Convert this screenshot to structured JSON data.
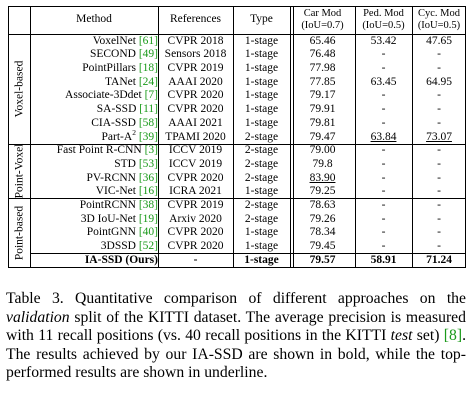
{
  "table": {
    "headers": {
      "method": "Method",
      "references": "References",
      "type": "Type",
      "car": "Car Mod",
      "car_sub": "(IoU=0.7)",
      "ped": "Ped. Mod",
      "ped_sub": "(IoU=0.5)",
      "cyc": "Cyc. Mod",
      "cyc_sub": "(IoU=0.5)"
    },
    "groups": [
      {
        "label": "Voxel-based",
        "rows": [
          {
            "method": "VoxelNet",
            "cite": "[61]",
            "ref": "CVPR 2018",
            "type": "1-stage",
            "car": "65.46",
            "ped": "53.42",
            "cyc": "47.65"
          },
          {
            "method": "SECOND",
            "cite": "[49]",
            "ref": "Sensors 2018",
            "type": "1-stage",
            "car": "76.48",
            "ped": "-",
            "cyc": "-"
          },
          {
            "method": "PointPillars",
            "cite": "[18]",
            "ref": "CVPR 2019",
            "type": "1-stage",
            "car": "77.98",
            "ped": "-",
            "cyc": "-"
          },
          {
            "method": "TANet",
            "cite": "[24]",
            "ref": "AAAI 2020",
            "type": "1-stage",
            "car": "77.85",
            "ped": "63.45",
            "cyc": "64.95"
          },
          {
            "method": "Associate-3Ddet",
            "cite": "[7]",
            "ref": "CVPR 2020",
            "type": "1-stage",
            "car": "79.17",
            "ped": "-",
            "cyc": "-"
          },
          {
            "method": "SA-SSD",
            "cite": "[11]",
            "ref": "CVPR 2020",
            "type": "1-stage",
            "car": "79.91",
            "ped": "-",
            "cyc": "-"
          },
          {
            "method": "CIA-SSD",
            "cite": "[58]",
            "ref": "AAAI 2021",
            "type": "1-stage",
            "car": "79.81",
            "ped": "-",
            "cyc": "-"
          },
          {
            "method": "Part-A",
            "sup": "2",
            "cite": "[39]",
            "ref": "TPAMI 2020",
            "type": "2-stage",
            "car": "79.47",
            "ped": "63.84",
            "cyc": "73.07",
            "ped_u": true,
            "cyc_u": true
          }
        ]
      },
      {
        "label": "Point-Voxel",
        "rows": [
          {
            "method": "Fast Point R-CNN",
            "cite": "[3]",
            "ref": "ICCV 2019",
            "type": "2-stage",
            "car": "79.00",
            "ped": "-",
            "cyc": "-"
          },
          {
            "method": "STD",
            "cite": "[53]",
            "ref": "ICCV 2019",
            "type": "2-stage",
            "car": "79.8",
            "ped": "-",
            "cyc": "-"
          },
          {
            "method": "PV-RCNN",
            "cite": "[36]",
            "ref": "CVPR 2020",
            "type": "2-stage",
            "car": "83.90",
            "ped": "-",
            "cyc": "-",
            "car_u": true
          },
          {
            "method": "VIC-Net",
            "cite": "[16]",
            "ref": "ICRA 2021",
            "type": "1-stage",
            "car": "79.25",
            "ped": "-",
            "cyc": "-"
          }
        ]
      },
      {
        "label": "Point-based",
        "rows": [
          {
            "method": "PointRCNN",
            "cite": "[38]",
            "ref": "CVPR 2019",
            "type": "2-stage",
            "car": "78.63",
            "ped": "-",
            "cyc": "-"
          },
          {
            "method": "3D IoU-Net",
            "cite": "[19]",
            "ref": "Arxiv 2020",
            "type": "2-stage",
            "car": "79.26",
            "ped": "-",
            "cyc": "-"
          },
          {
            "method": "PointGNN",
            "cite": "[40]",
            "ref": "CVPR 2020",
            "type": "1-stage",
            "car": "78.34",
            "ped": "-",
            "cyc": "-"
          },
          {
            "method": "3DSSD",
            "cite": "[52]",
            "ref": "CVPR 2020",
            "type": "1-stage",
            "car": "79.45",
            "ped": "-",
            "cyc": "-"
          },
          {
            "method": "IA-SSD (Ours)",
            "cite": "",
            "ref": "-",
            "type": "1-stage",
            "car": "79.57",
            "ped": "58.91",
            "cyc": "71.24",
            "bold": true
          }
        ]
      }
    ]
  },
  "caption": {
    "label": "Table 3.",
    "t1": " Quantitative comparison of different approaches on the ",
    "t2": "validation",
    "t3": " split of the KITTI dataset. The average precision is measured with 11 recall positions (vs. 40 recall positions in the KITTI ",
    "t4": "test",
    "t5": " set) ",
    "ref": "[8]",
    "t6": ". The results achieved by our IA-SSD are shown in bold, while the top-performed results are shown in underline."
  }
}
